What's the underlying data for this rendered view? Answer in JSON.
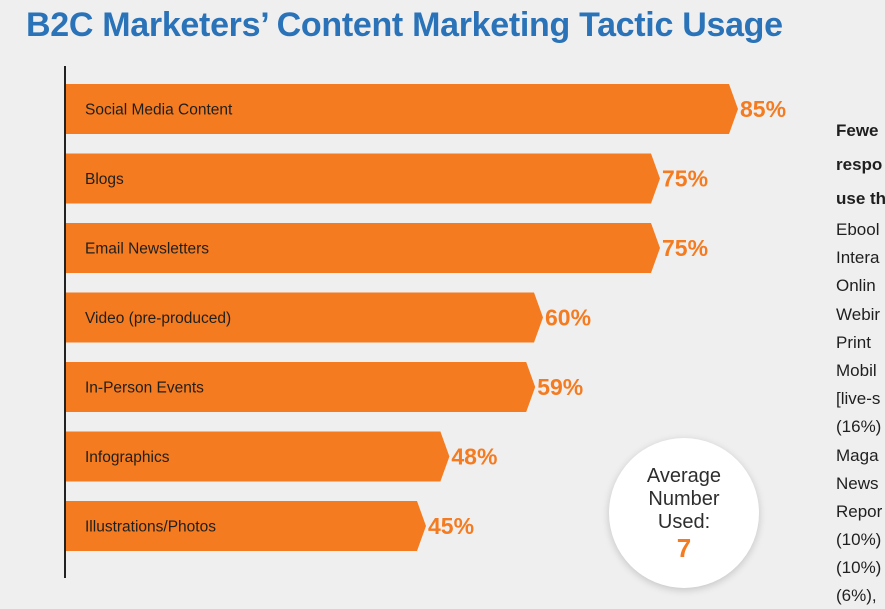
{
  "chart_data": {
    "type": "bar",
    "orientation": "horizontal",
    "title": "B2C Marketers’ Content Marketing Tactic Usage",
    "categories": [
      "Social Media Content",
      "Blogs",
      "Email Newsletters",
      "Video (pre-produced)",
      "In-Person Events",
      "Infographics",
      "Illustrations/Photos"
    ],
    "values": [
      85,
      75,
      75,
      60,
      59,
      48,
      45
    ],
    "value_labels": [
      "85%",
      "75%",
      "75%",
      "60%",
      "59%",
      "48%",
      "45%"
    ],
    "xlim": [
      0,
      100
    ],
    "grid": false,
    "bar_color": "#f47b20"
  },
  "callout": {
    "lines": [
      "Average",
      "Number",
      "Used:"
    ],
    "value": "7"
  },
  "sidebar": {
    "heading_lines": [
      "Fewe",
      "respo",
      "use th"
    ],
    "lines": [
      "Ebool",
      "Intera",
      "Onlin",
      "Webir",
      "Print",
      "Mobil",
      "[live-s",
      "(16%)",
      "Maga",
      "News",
      "Repor",
      "(10%)",
      "(10%)",
      "(6%),"
    ]
  },
  "colors": {
    "title": "#2a73b8",
    "accent": "#f47b20",
    "background": "#efefef"
  }
}
